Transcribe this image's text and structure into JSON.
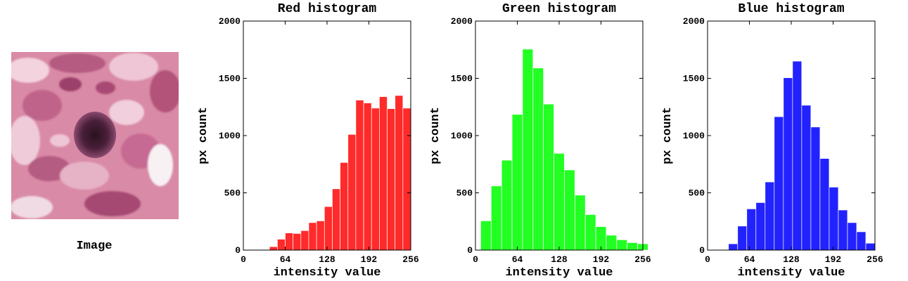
{
  "image_panel": {
    "caption": "Image"
  },
  "chart_data": [
    {
      "type": "bar",
      "title": "Red histogram",
      "xlabel": "intensity value",
      "ylabel": "px count",
      "xlim": [
        0,
        256
      ],
      "ylim": [
        0,
        2000
      ],
      "xticks": [
        0,
        64,
        128,
        192,
        256
      ],
      "yticks": [
        0,
        500,
        1000,
        1500,
        2000
      ],
      "bin_width": 12,
      "bin_starts": [
        40,
        52,
        64,
        76,
        88,
        100,
        112,
        124,
        136,
        148,
        160,
        172,
        184,
        196,
        208,
        220,
        232,
        244
      ],
      "values": [
        30,
        95,
        150,
        145,
        170,
        240,
        255,
        380,
        535,
        765,
        1010,
        1310,
        1285,
        1240,
        1340,
        1235,
        1350,
        1240
      ],
      "color": "#ff2a2a"
    },
    {
      "type": "bar",
      "title": "Green histogram",
      "xlabel": "intensity value",
      "ylabel": "px count",
      "xlim": [
        0,
        256
      ],
      "ylim": [
        0,
        2000
      ],
      "xticks": [
        0,
        64,
        128,
        192,
        256
      ],
      "yticks": [
        0,
        500,
        1000,
        1500,
        2000
      ],
      "bin_width": 16,
      "bin_starts": [
        8,
        24,
        40,
        56,
        72,
        88,
        104,
        120,
        136,
        152,
        168,
        184,
        200,
        216,
        232,
        248
      ],
      "values": [
        255,
        560,
        785,
        1185,
        1755,
        1590,
        1275,
        845,
        700,
        480,
        310,
        205,
        130,
        90,
        65,
        55
      ],
      "color": "#22ff22"
    },
    {
      "type": "bar",
      "title": "Blue histogram",
      "xlabel": "intensity value",
      "ylabel": "px count",
      "xlim": [
        0,
        256
      ],
      "ylim": [
        0,
        2000
      ],
      "xticks": [
        0,
        64,
        128,
        192,
        256
      ],
      "yticks": [
        0,
        500,
        1000,
        1500,
        2000
      ],
      "bin_width": 14,
      "bin_starts": [
        32,
        46,
        60,
        74,
        88,
        102,
        116,
        130,
        144,
        158,
        172,
        186,
        200,
        214,
        228,
        242
      ],
      "values": [
        55,
        210,
        360,
        415,
        595,
        1165,
        1505,
        1650,
        1265,
        1075,
        800,
        550,
        350,
        240,
        160,
        60
      ],
      "color": "#2222ff"
    }
  ]
}
